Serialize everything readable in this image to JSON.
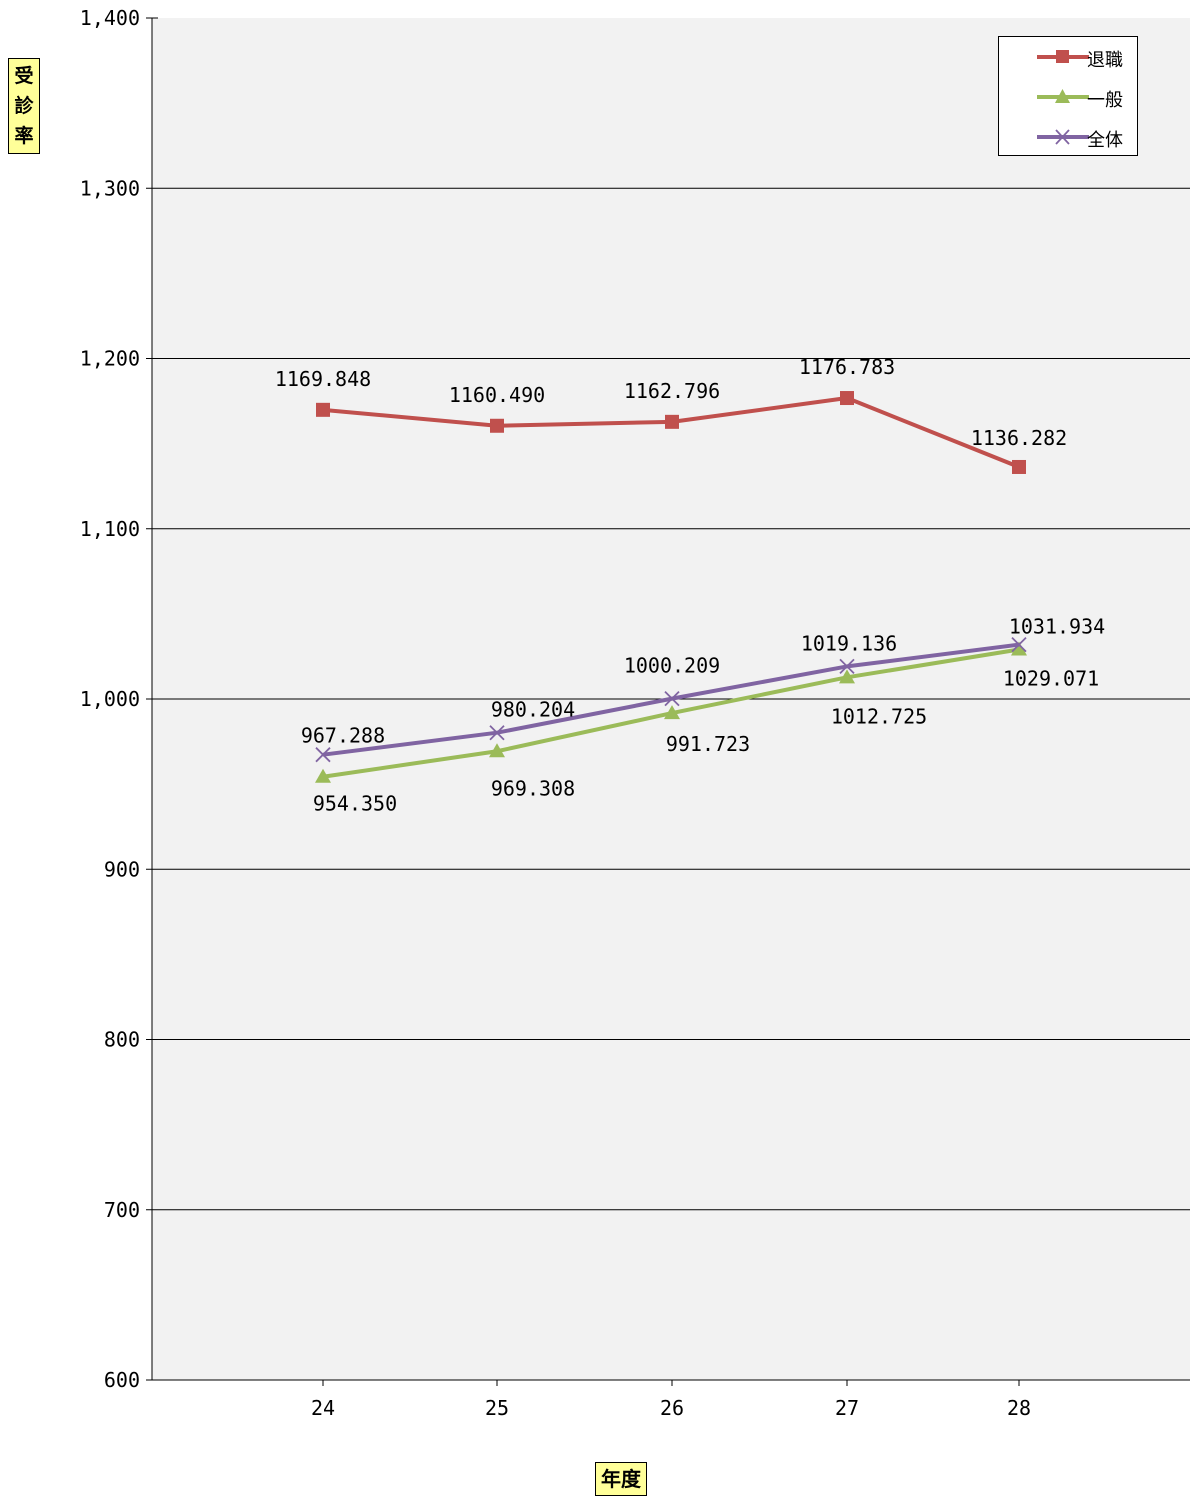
{
  "chart_data": {
    "type": "line",
    "categories": [
      "24",
      "25",
      "26",
      "27",
      "28"
    ],
    "xlabel": "年度",
    "ylabel": "受診率",
    "ylim": [
      600,
      1400
    ],
    "yticks": [
      "600",
      "700",
      "800",
      "900",
      "1,000",
      "1,100",
      "1,200",
      "1,300",
      "1,400"
    ],
    "grid": true,
    "legend_position": "top-right",
    "series": [
      {
        "name": "退職",
        "color": "#c0504d",
        "marker": "square",
        "values": [
          1169.848,
          1160.49,
          1162.796,
          1176.783,
          1136.282
        ],
        "labels": [
          "1169.848",
          "1160.490",
          "1162.796",
          "1176.783",
          "1136.282"
        ]
      },
      {
        "name": "一般",
        "color": "#9bbb59",
        "marker": "triangle",
        "values": [
          954.35,
          969.308,
          991.723,
          1012.725,
          1029.071
        ],
        "labels": [
          "954.350",
          "969.308",
          "991.723",
          "1012.725",
          "1029.071"
        ]
      },
      {
        "name": "全体",
        "color": "#8064a2",
        "marker": "x",
        "values": [
          967.288,
          980.204,
          1000.209,
          1019.136,
          1031.934
        ],
        "labels": [
          "967.288",
          "980.204",
          "1000.209",
          "1019.136",
          "1031.934"
        ]
      }
    ]
  }
}
